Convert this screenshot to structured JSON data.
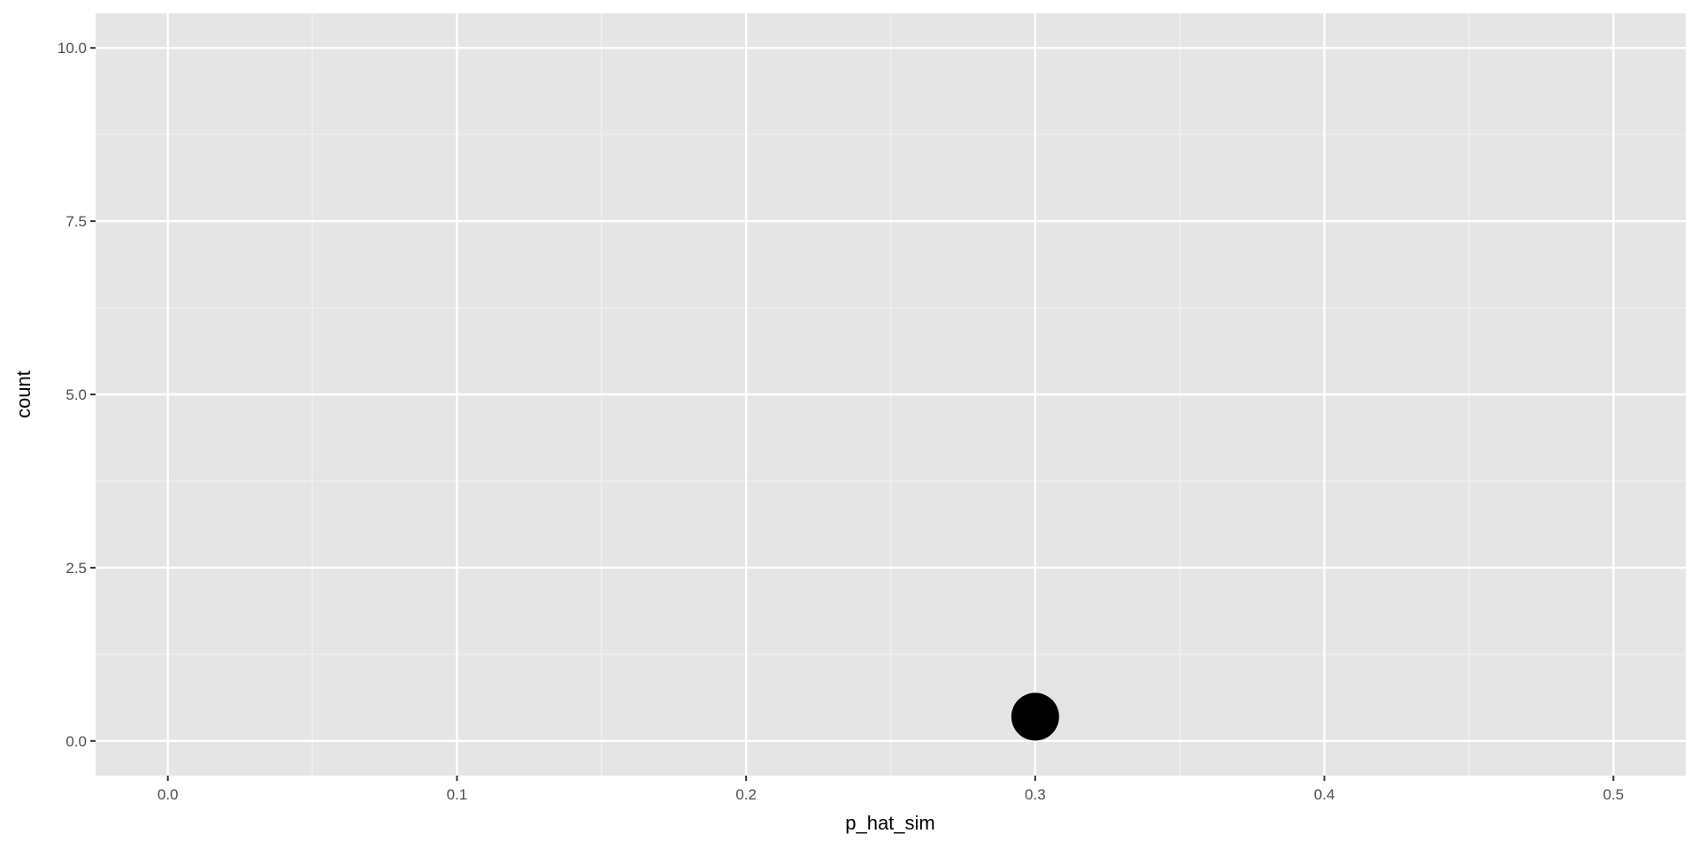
{
  "chart_data": {
    "type": "scatter",
    "title": "",
    "xlabel": "p_hat_sim",
    "ylabel": "count",
    "xlim": [
      -0.025,
      0.525
    ],
    "ylim": [
      -0.5,
      10.5
    ],
    "x_ticks": [
      "0.0",
      "0.1",
      "0.2",
      "0.3",
      "0.4",
      "0.5"
    ],
    "x_tick_values": [
      0,
      0.1,
      0.2,
      0.3,
      0.4,
      0.5
    ],
    "y_ticks": [
      "0.0",
      "2.5",
      "5.0",
      "7.5",
      "10.0"
    ],
    "y_tick_values": [
      0,
      2.5,
      5,
      7.5,
      10
    ],
    "grid": true,
    "background": "#e5e5e5",
    "point_color": "#000000",
    "points": [
      {
        "x": 0.3,
        "y": 0.35
      }
    ]
  }
}
